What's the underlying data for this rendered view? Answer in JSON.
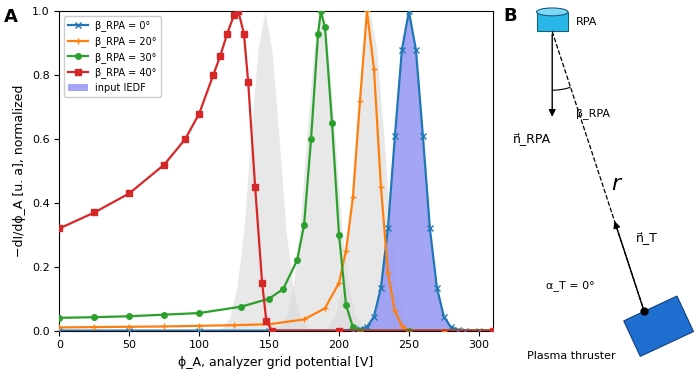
{
  "chart_data": {
    "type": "line",
    "panel_label": "A",
    "x_label": "ϕ_A, analyzer grid potential [V]",
    "y_label": "−dI/dϕ_A [u. a], normalized",
    "xlim": [
      0,
      310
    ],
    "xticks": [
      0,
      50,
      100,
      150,
      200,
      250,
      300
    ],
    "ylim": [
      0,
      1
    ],
    "yticks": [
      {
        "value": 0,
        "label": "0.0"
      },
      {
        "value": 0.2,
        "label": "0.2"
      },
      {
        "value": 0.4,
        "label": "0.4"
      },
      {
        "value": 0.6,
        "label": "0.6"
      },
      {
        "value": 0.8,
        "label": "0.8"
      },
      {
        "value": 1,
        "label": "1.0"
      }
    ],
    "grid": false,
    "legend": "upper left",
    "series": [
      {
        "type": "area",
        "color": "#d9d9d9",
        "x": [
          112,
          117,
          122,
          127,
          132,
          137,
          142,
          147,
          152,
          157,
          162,
          167,
          172,
          177,
          182
        ],
        "values": [
          0,
          0.011,
          0.044,
          0.135,
          0.32,
          0.61,
          0.88,
          1.0,
          0.88,
          0.61,
          0.32,
          0.135,
          0.044,
          0.011,
          0
        ]
      },
      {
        "type": "area",
        "color": "#d9d9d9",
        "x": [
          152,
          157,
          162,
          167,
          172,
          177,
          182,
          187,
          192,
          197,
          202,
          207,
          212,
          217,
          222
        ],
        "values": [
          0,
          0.011,
          0.044,
          0.135,
          0.32,
          0.61,
          0.88,
          1.0,
          0.88,
          0.61,
          0.32,
          0.135,
          0.044,
          0.011,
          0
        ]
      },
      {
        "type": "area",
        "color": "#d9d9d9",
        "x": [
          187,
          192,
          197,
          202,
          207,
          212,
          217,
          222,
          227,
          232,
          237,
          242,
          247,
          252,
          257
        ],
        "values": [
          0,
          0.011,
          0.044,
          0.135,
          0.32,
          0.61,
          0.88,
          1.0,
          0.88,
          0.61,
          0.32,
          0.135,
          0.044,
          0.011,
          0
        ]
      },
      {
        "name": "β_RPA = 0°",
        "type": "line",
        "color": "#1f77b4",
        "marker": "x",
        "x": [
          0,
          50,
          100,
          150,
          200,
          210,
          215,
          220,
          225,
          230,
          235,
          240,
          245,
          250,
          255,
          260,
          265,
          270,
          275,
          280,
          285,
          290,
          300,
          310
        ],
        "values": [
          0,
          0,
          0,
          0,
          0,
          0.003,
          0.005,
          0.011,
          0.044,
          0.135,
          0.32,
          0.61,
          0.88,
          1.0,
          0.88,
          0.61,
          0.32,
          0.135,
          0.044,
          0.011,
          0.003,
          0,
          0,
          0
        ]
      },
      {
        "name": "β_RPA = 20°",
        "type": "line",
        "color": "#ff7f0e",
        "marker": "plus",
        "x": [
          0,
          25,
          50,
          75,
          100,
          125,
          150,
          175,
          190,
          200,
          205,
          210,
          215,
          220,
          225,
          230,
          235,
          240,
          245,
          250,
          275,
          310
        ],
        "values": [
          0.01,
          0.011,
          0.012,
          0.013,
          0.015,
          0.017,
          0.02,
          0.035,
          0.07,
          0.15,
          0.25,
          0.42,
          0.72,
          1.0,
          0.82,
          0.45,
          0.18,
          0.06,
          0.015,
          0,
          0,
          0
        ]
      },
      {
        "name": "β_RPA = 30°",
        "type": "line",
        "color": "#2ca02c",
        "marker": "circle",
        "x": [
          0,
          25,
          50,
          75,
          100,
          130,
          150,
          160,
          170,
          175,
          180,
          185,
          187,
          190,
          195,
          200,
          205,
          210,
          215,
          250,
          310
        ],
        "values": [
          0.04,
          0.042,
          0.045,
          0.05,
          0.055,
          0.075,
          0.1,
          0.13,
          0.22,
          0.33,
          0.6,
          0.93,
          1.0,
          0.95,
          0.65,
          0.3,
          0.08,
          0.01,
          0,
          0,
          0
        ]
      },
      {
        "name": "β_RPA = 40°",
        "type": "line",
        "color": "#d62728",
        "marker": "square",
        "x": [
          0,
          25,
          50,
          75,
          90,
          100,
          110,
          115,
          120,
          125,
          128,
          132,
          135,
          140,
          145,
          148,
          152,
          200,
          310
        ],
        "values": [
          0.32,
          0.37,
          0.43,
          0.52,
          0.6,
          0.68,
          0.8,
          0.86,
          0.93,
          0.99,
          1.0,
          0.93,
          0.78,
          0.45,
          0.15,
          0.03,
          0,
          0,
          0
        ]
      },
      {
        "name": "input IEDF",
        "type": "area",
        "color": "#9b9bf5",
        "x": [
          215,
          220,
          225,
          230,
          235,
          240,
          245,
          250,
          255,
          260,
          265,
          270,
          275,
          280,
          285
        ],
        "values": [
          0,
          0.011,
          0.044,
          0.135,
          0.32,
          0.61,
          0.88,
          1.0,
          0.88,
          0.61,
          0.32,
          0.135,
          0.044,
          0.011,
          0
        ]
      }
    ]
  },
  "diagram": {
    "panel_label": "B",
    "detector": "RPA",
    "source": "Plasma thruster",
    "angle_label": "β_RPA",
    "detector_normal": "n⃗_RPA",
    "distance": "r",
    "source_normal": "n⃗_T",
    "source_angle": "α_T = 0°"
  }
}
